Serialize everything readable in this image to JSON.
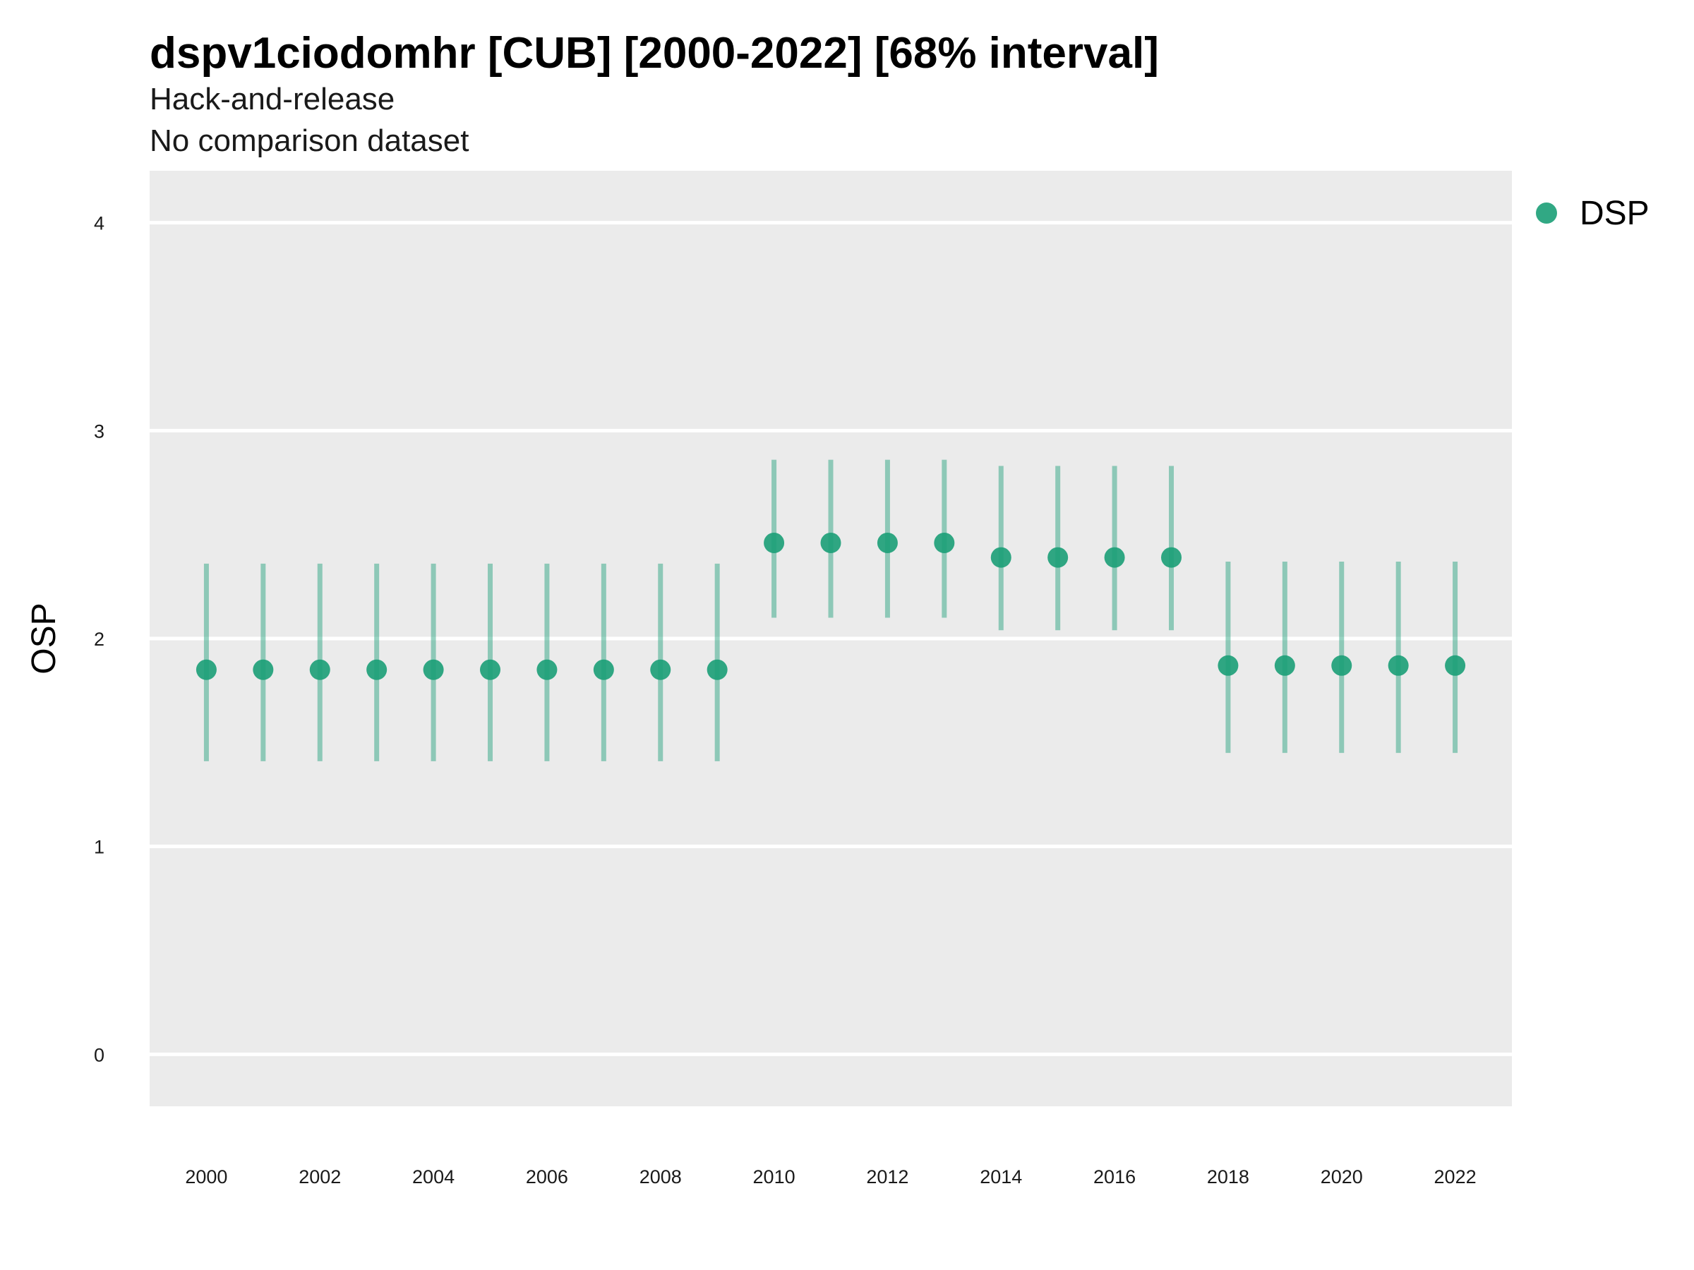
{
  "chart_data": {
    "type": "scatter",
    "title": "dspv1ciodomhr [CUB] [2000-2022] [68% interval]",
    "subtitle": "Hack-and-release",
    "subtitle2": "No comparison dataset",
    "xlabel": "",
    "ylabel": "OSP",
    "xlim": [
      1999,
      2023
    ],
    "ylim": [
      -0.25,
      4.25
    ],
    "y_ticks": [
      0,
      1,
      2,
      3,
      4
    ],
    "x_ticks": [
      2000,
      2002,
      2004,
      2006,
      2008,
      2010,
      2012,
      2014,
      2016,
      2018,
      2020,
      2022
    ],
    "grid": true,
    "legend_position": "right",
    "colors": {
      "series": "#1b9e77",
      "panel": "#ebebeb",
      "grid": "#ffffff"
    },
    "series": [
      {
        "name": "DSP",
        "x": [
          2000,
          2001,
          2002,
          2003,
          2004,
          2005,
          2006,
          2007,
          2008,
          2009,
          2010,
          2011,
          2012,
          2013,
          2014,
          2015,
          2016,
          2017,
          2018,
          2019,
          2020,
          2021,
          2022
        ],
        "y": [
          1.85,
          1.85,
          1.85,
          1.85,
          1.85,
          1.85,
          1.85,
          1.85,
          1.85,
          1.85,
          2.46,
          2.46,
          2.46,
          2.46,
          2.39,
          2.39,
          2.39,
          2.39,
          1.87,
          1.87,
          1.87,
          1.87,
          1.87
        ],
        "lower": [
          1.41,
          1.41,
          1.41,
          1.41,
          1.41,
          1.41,
          1.41,
          1.41,
          1.41,
          1.41,
          2.1,
          2.1,
          2.1,
          2.1,
          2.04,
          2.04,
          2.04,
          2.04,
          1.45,
          1.45,
          1.45,
          1.45,
          1.45
        ],
        "upper": [
          2.36,
          2.36,
          2.36,
          2.36,
          2.36,
          2.36,
          2.36,
          2.36,
          2.36,
          2.36,
          2.86,
          2.86,
          2.86,
          2.86,
          2.83,
          2.83,
          2.83,
          2.83,
          2.37,
          2.37,
          2.37,
          2.37,
          2.37
        ]
      }
    ]
  }
}
